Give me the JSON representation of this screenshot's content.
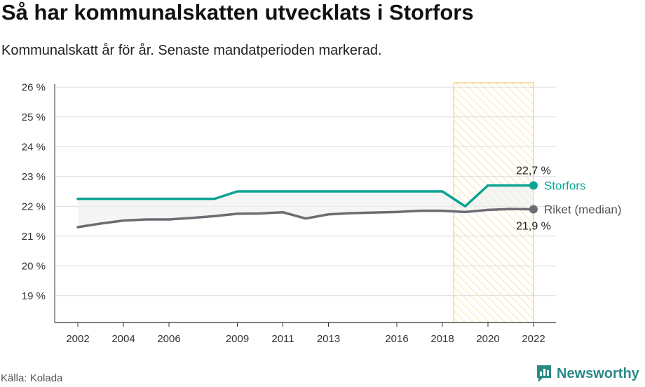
{
  "title": "Så har kommunalskatten utvecklats i Storfors",
  "subtitle": "Kommunalskatt år för år. Senaste mandatperioden markerad.",
  "source": "Källa: Kolada",
  "brand": {
    "name": "Newsworthy",
    "icon": "newsworthy-logo-icon"
  },
  "colors": {
    "storfors": "#0aa392",
    "riket": "#6e6c73",
    "highlight": "#f6c96a"
  },
  "chart_data": {
    "type": "line",
    "x": [
      2002,
      2003,
      2004,
      2005,
      2006,
      2007,
      2008,
      2009,
      2010,
      2011,
      2012,
      2013,
      2014,
      2015,
      2016,
      2017,
      2018,
      2019,
      2020,
      2021,
      2022
    ],
    "series": [
      {
        "name": "Storfors",
        "color": "#0aa392",
        "values": [
          22.25,
          22.25,
          22.25,
          22.25,
          22.25,
          22.25,
          22.25,
          22.5,
          22.5,
          22.5,
          22.5,
          22.5,
          22.5,
          22.5,
          22.5,
          22.5,
          22.5,
          22.0,
          22.7,
          22.7,
          22.7
        ]
      },
      {
        "name": "Riket (median)",
        "color": "#6e6c73",
        "values": [
          21.3,
          21.42,
          21.52,
          21.56,
          21.56,
          21.61,
          21.67,
          21.75,
          21.76,
          21.8,
          21.59,
          21.73,
          21.77,
          21.79,
          21.81,
          21.85,
          21.85,
          21.81,
          21.88,
          21.91,
          21.9
        ]
      }
    ],
    "end_labels": {
      "storfors": "22,7 %",
      "riket": "21,9 %"
    },
    "highlight_period": [
      2018.5,
      2022
    ],
    "y_ticks": [
      19,
      20,
      21,
      22,
      23,
      24,
      25,
      26
    ],
    "y_tick_labels": [
      "19 %",
      "20 %",
      "21 %",
      "22 %",
      "23 %",
      "24 %",
      "25 %",
      "26 %"
    ],
    "x_ticks": [
      2002,
      2004,
      2006,
      2009,
      2011,
      2013,
      2016,
      2018,
      2020,
      2022
    ],
    "x_tick_labels": [
      "2002",
      "2004",
      "2006",
      "2009",
      "2011",
      "2013",
      "2016",
      "2018",
      "2020",
      "2022"
    ],
    "ylim": [
      18.1,
      26.1
    ],
    "grid": true
  }
}
